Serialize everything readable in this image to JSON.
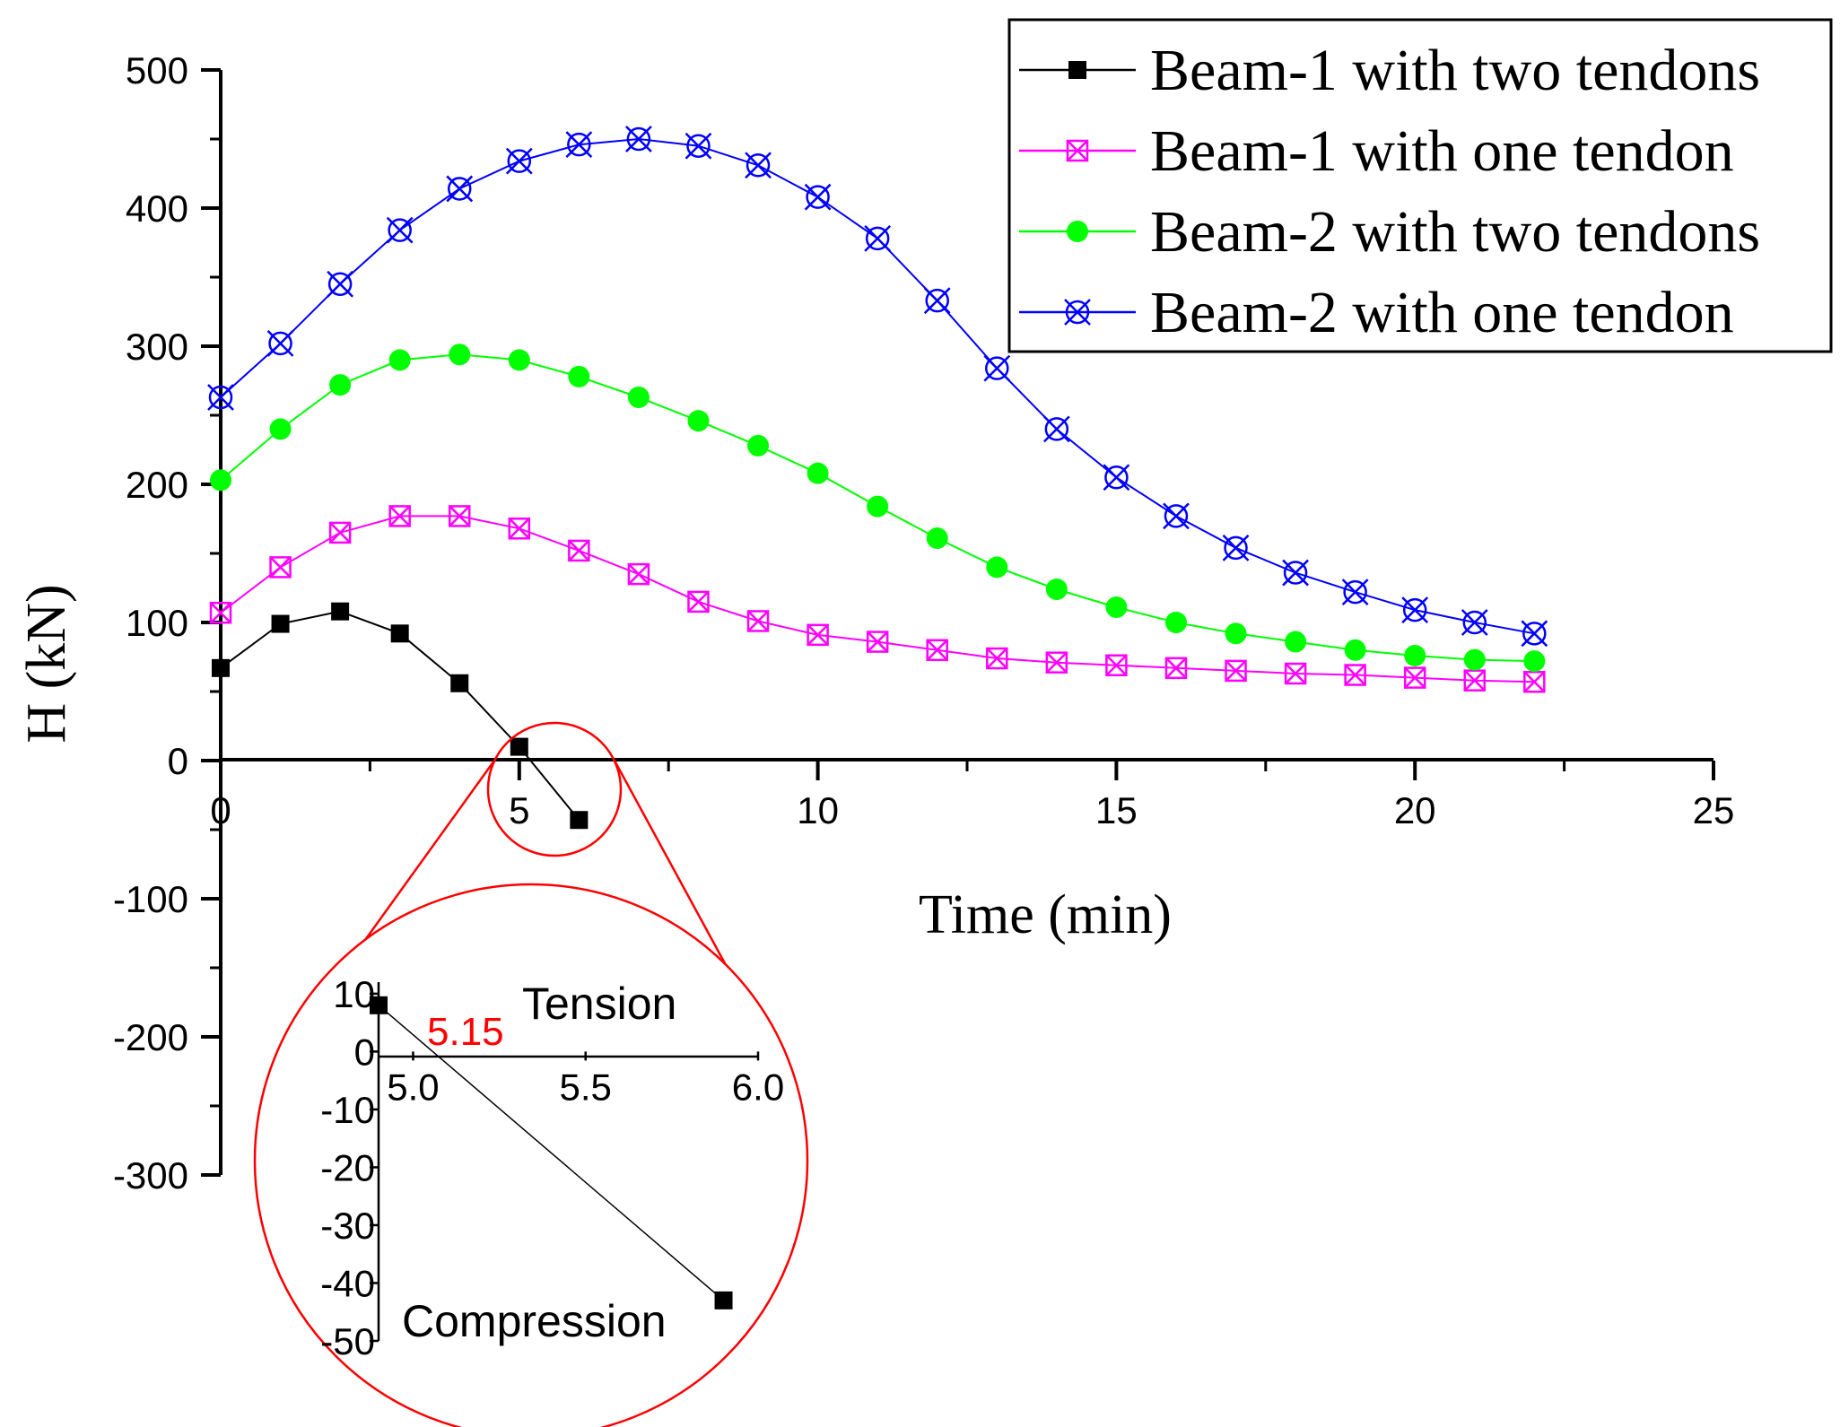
{
  "chart_data": [
    {
      "type": "line",
      "title": "",
      "xlabel": "Time (min)",
      "ylabel": "H (kN)",
      "xlim": [
        0,
        25
      ],
      "ylim": [
        -300,
        500
      ],
      "xticks": [
        "0",
        "5",
        "10",
        "15",
        "20",
        "25"
      ],
      "yticks": [
        "-300",
        "-200",
        "-100",
        "0",
        "100",
        "200",
        "300",
        "400",
        "500"
      ],
      "grid": false,
      "legend_position": "top-right",
      "series": [
        {
          "name": "Beam-1 with two tendons",
          "color": "#000000",
          "marker": "filled-square",
          "x": [
            0,
            1,
            2,
            3,
            4,
            5,
            6
          ],
          "y": [
            67,
            99,
            108,
            92,
            56,
            10,
            -43
          ]
        },
        {
          "name": "Beam-1 with one tendon",
          "color": "#ff00ff",
          "marker": "boxed-x",
          "x": [
            0,
            1,
            2,
            3,
            4,
            5,
            6,
            7,
            8,
            9,
            10,
            11,
            12,
            13,
            14,
            15,
            16,
            17,
            18,
            19,
            20,
            21,
            22
          ],
          "y": [
            107,
            140,
            165,
            177,
            177,
            168,
            152,
            135,
            115,
            101,
            91,
            86,
            80,
            74,
            71,
            69,
            67,
            65,
            63,
            62,
            60,
            58,
            57
          ]
        },
        {
          "name": "Beam-2 with two tendons",
          "color": "#00ff00",
          "marker": "filled-circle",
          "x": [
            0,
            1,
            2,
            3,
            4,
            5,
            6,
            7,
            8,
            9,
            10,
            11,
            12,
            13,
            14,
            15,
            16,
            17,
            18,
            19,
            20,
            21,
            22
          ],
          "y": [
            203,
            240,
            272,
            290,
            294,
            290,
            278,
            263,
            246,
            228,
            208,
            184,
            161,
            140,
            124,
            111,
            100,
            92,
            86,
            80,
            76,
            73,
            72
          ]
        },
        {
          "name": "Beam-2 with one tendon",
          "color": "#0000ff",
          "marker": "circled-x",
          "x": [
            0,
            1,
            2,
            3,
            4,
            5,
            6,
            7,
            8,
            9,
            10,
            11,
            12,
            13,
            14,
            15,
            16,
            17,
            18,
            19,
            20,
            21,
            22
          ],
          "y": [
            263,
            302,
            345,
            384,
            414,
            434,
            446,
            450,
            445,
            431,
            408,
            378,
            333,
            284,
            240,
            205,
            177,
            154,
            136,
            122,
            109,
            100,
            92
          ]
        }
      ]
    },
    {
      "type": "line",
      "title": "",
      "description_role": "inset zoom",
      "xlim": [
        4.9,
        6.0
      ],
      "ylim": [
        -50,
        12
      ],
      "xticks": [
        "5.0",
        "5.5",
        "6.0"
      ],
      "yticks": [
        "10",
        "0",
        "-10",
        "-20",
        "-30",
        "-40",
        "-50"
      ],
      "annotations": {
        "tension": "Tension",
        "compression": "Compression",
        "crossing": "5.15"
      },
      "series": [
        {
          "name": "Beam-1 with two tendons",
          "color": "#000000",
          "marker": "filled-square",
          "x": [
            4.9,
            5.9
          ],
          "y": [
            8,
            -43
          ]
        }
      ]
    }
  ],
  "colors": {
    "zoom_circle": "#ff0000",
    "crossing_label": "#ff0000"
  }
}
